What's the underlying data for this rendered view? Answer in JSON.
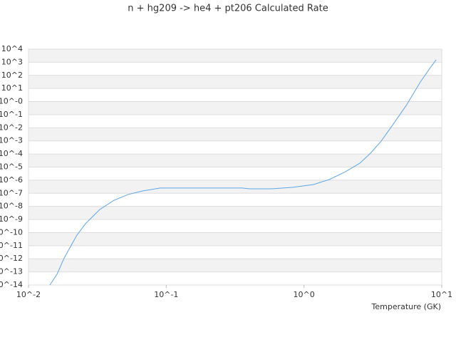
{
  "chart_data": {
    "type": "line",
    "title": "n + hg209 -> he4 + pt206 Calculated Rate",
    "x_label": "Temperature (GK)",
    "x_scale": "log",
    "y_scale": "log",
    "grid": true,
    "xlim": [
      0.01,
      10
    ],
    "ylim": [
      1e-14,
      10000
    ],
    "xticks": [
      {
        "value": 0.01,
        "label": "10^-2"
      },
      {
        "value": 0.1,
        "label": "10^-1"
      },
      {
        "value": 1,
        "label": "10^0"
      },
      {
        "value": 10,
        "label": "10^1"
      }
    ],
    "yticks": [
      {
        "value": 10000,
        "label": "10^4"
      },
      {
        "value": 1000,
        "label": "10^3"
      },
      {
        "value": 100,
        "label": "10^2"
      },
      {
        "value": 10,
        "label": "10^1"
      },
      {
        "value": 1,
        "label": "10^-0"
      },
      {
        "value": 0.1,
        "label": "10^-1"
      },
      {
        "value": 0.01,
        "label": "10^-2"
      },
      {
        "value": 0.001,
        "label": "10^-3"
      },
      {
        "value": 0.0001,
        "label": "10^-4"
      },
      {
        "value": 1e-05,
        "label": "10^-5"
      },
      {
        "value": 1e-06,
        "label": "10^-6"
      },
      {
        "value": 1e-07,
        "label": "10^-7"
      },
      {
        "value": 1e-08,
        "label": "10^-8"
      },
      {
        "value": 1e-09,
        "label": "10^-9"
      },
      {
        "value": 1e-10,
        "label": "10^-10"
      },
      {
        "value": 1e-11,
        "label": "10^-11"
      },
      {
        "value": 1e-12,
        "label": "10^-12"
      },
      {
        "value": 1e-13,
        "label": "10^-13"
      },
      {
        "value": 1e-14,
        "label": "10^-14"
      }
    ],
    "x": [
      0.01429,
      0.01611,
      0.01816,
      0.02249,
      0.02594,
      0.03289,
      0.04178,
      0.05297,
      0.0673,
      0.09057,
      0.1084,
      0.2213,
      0.3565,
      0.4018,
      0.5741,
      0.8204,
      1.172,
      1.524,
      2.004,
      2.547,
      3.041,
      3.639,
      4.345,
      5.521,
      6.998,
      8.185,
      9.099
    ],
    "series": [
      {
        "color": "#5da5e8",
        "values": [
          1e-14,
          6.61e-14,
          1.17e-12,
          6.46e-11,
          4.79e-10,
          5.75e-09,
          2.95e-08,
          8.13e-08,
          1.51e-07,
          2.51e-07,
          2.51e-07,
          2.51e-07,
          2.51e-07,
          2.19e-07,
          2.19e-07,
          2.82e-07,
          4.68e-07,
          1.12e-06,
          4.47e-06,
          2e-05,
          0.000115,
          0.000977,
          0.0135,
          0.501,
          31.6,
          339,
          1514
        ]
      }
    ]
  }
}
